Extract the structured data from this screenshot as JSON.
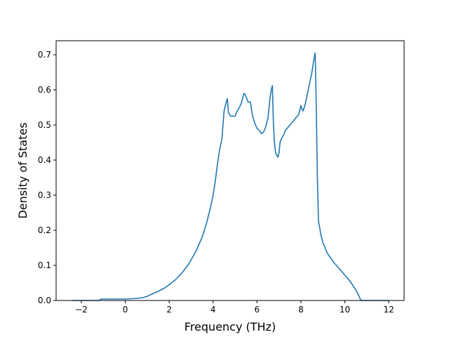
{
  "chart_data": {
    "type": "line",
    "title": "",
    "xlabel": "Frequency (THz)",
    "ylabel": "Density of States",
    "xlim": [
      -3.15,
      12.7
    ],
    "ylim": [
      0.0,
      0.74
    ],
    "xticks": [
      -2,
      0,
      2,
      4,
      6,
      8,
      10,
      12
    ],
    "xtick_labels": [
      "−2",
      "0",
      "2",
      "4",
      "6",
      "8",
      "10",
      "12"
    ],
    "yticks": [
      0.0,
      0.1,
      0.2,
      0.3,
      0.4,
      0.5,
      0.6,
      0.7
    ],
    "ytick_labels": [
      "0.0",
      "0.1",
      "0.2",
      "0.3",
      "0.4",
      "0.5",
      "0.6",
      "0.7"
    ],
    "grid": false,
    "legend": false,
    "colors": {
      "line": "#1f77b4",
      "axes": "#000000"
    },
    "series": [
      {
        "x": [
          -2.4,
          -1.2,
          -1.1,
          -1.0,
          -0.5,
          0.0,
          0.5,
          0.8,
          1.0,
          1.2,
          1.5,
          1.8,
          2.0,
          2.3,
          2.6,
          2.9,
          3.2,
          3.5,
          3.7,
          3.9,
          4.0,
          4.1,
          4.2,
          4.3,
          4.4,
          4.5,
          4.6,
          4.65,
          4.7,
          4.8,
          4.9,
          5.0,
          5.1,
          5.2,
          5.3,
          5.4,
          5.45,
          5.5,
          5.6,
          5.7,
          5.75,
          5.8,
          5.9,
          6.0,
          6.1,
          6.2,
          6.3,
          6.4,
          6.5,
          6.6,
          6.65,
          6.7,
          6.75,
          6.8,
          6.85,
          6.95,
          7.0,
          7.05,
          7.1,
          7.2,
          7.3,
          7.5,
          7.7,
          7.9,
          8.0,
          8.05,
          8.1,
          8.2,
          8.3,
          8.4,
          8.5,
          8.6,
          8.65,
          8.7,
          8.75,
          8.8,
          8.85,
          8.9,
          9.0,
          9.2,
          9.5,
          9.8,
          10.0,
          10.2,
          10.4,
          10.55,
          10.65,
          10.7,
          10.75,
          10.8,
          11.0,
          11.5,
          12.0
        ],
        "y": [
          0.0,
          0.0,
          0.004,
          0.004,
          0.004,
          0.004,
          0.006,
          0.008,
          0.012,
          0.018,
          0.026,
          0.036,
          0.045,
          0.06,
          0.08,
          0.105,
          0.138,
          0.18,
          0.22,
          0.27,
          0.3,
          0.34,
          0.39,
          0.43,
          0.46,
          0.54,
          0.565,
          0.575,
          0.535,
          0.525,
          0.525,
          0.525,
          0.54,
          0.55,
          0.565,
          0.59,
          0.588,
          0.58,
          0.565,
          0.565,
          0.545,
          0.525,
          0.505,
          0.49,
          0.485,
          0.475,
          0.48,
          0.495,
          0.52,
          0.58,
          0.6,
          0.612,
          0.5,
          0.445,
          0.42,
          0.408,
          0.42,
          0.45,
          0.46,
          0.47,
          0.485,
          0.5,
          0.515,
          0.53,
          0.555,
          0.545,
          0.54,
          0.56,
          0.59,
          0.62,
          0.65,
          0.69,
          0.705,
          0.55,
          0.35,
          0.225,
          0.21,
          0.19,
          0.165,
          0.135,
          0.108,
          0.087,
          0.072,
          0.058,
          0.04,
          0.025,
          0.012,
          0.004,
          0.0,
          0.0,
          0.0,
          0.0,
          0.0
        ]
      }
    ]
  }
}
